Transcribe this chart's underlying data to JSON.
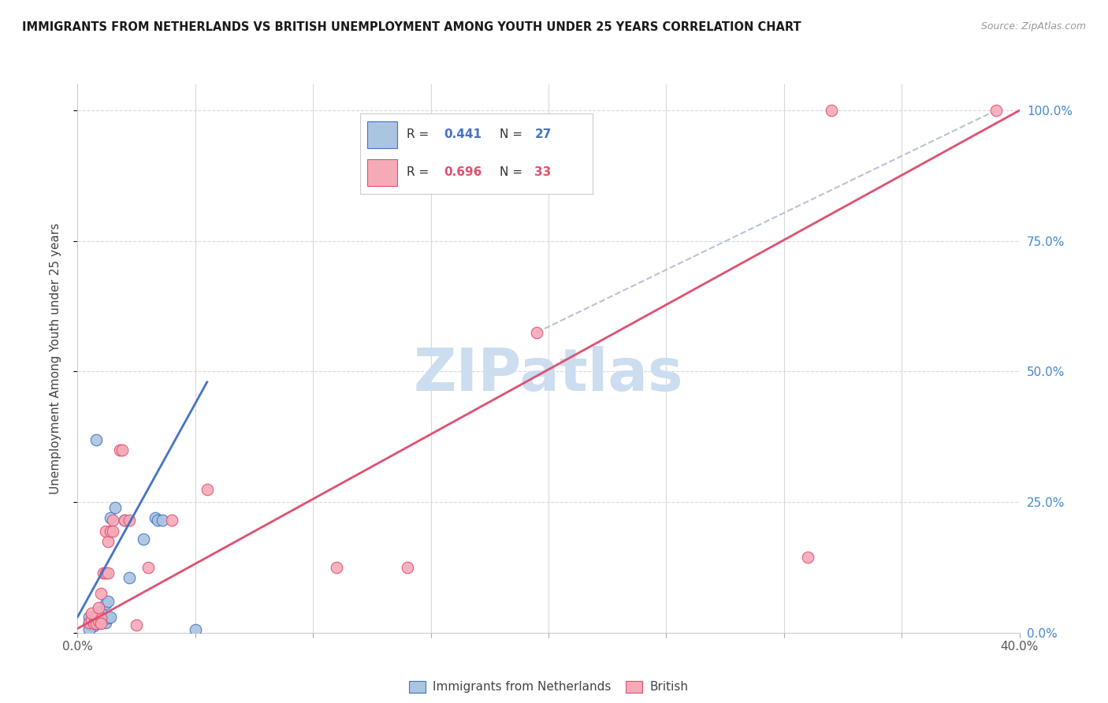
{
  "title": "IMMIGRANTS FROM NETHERLANDS VS BRITISH UNEMPLOYMENT AMONG YOUTH UNDER 25 YEARS CORRELATION CHART",
  "source": "Source: ZipAtlas.com",
  "ylabel": "Unemployment Among Youth under 25 years",
  "right_yticks": [
    "0.0%",
    "25.0%",
    "50.0%",
    "75.0%",
    "100.0%"
  ],
  "legend_blue_r_val": "0.441",
  "legend_blue_n_val": "27",
  "legend_pink_r_val": "0.696",
  "legend_pink_n_val": "33",
  "blue_color": "#aac4e2",
  "pink_color": "#f5aab8",
  "blue_line_color": "#4472C4",
  "pink_line_color": "#E05070",
  "dashed_line_color": "#b8c4d4",
  "blue_scatter": [
    [
      0.005,
      0.02
    ],
    [
      0.007,
      0.025
    ],
    [
      0.008,
      0.035
    ],
    [
      0.01,
      0.04
    ],
    [
      0.01,
      0.02
    ],
    [
      0.01,
      0.025
    ],
    [
      0.012,
      0.02
    ],
    [
      0.012,
      0.055
    ],
    [
      0.013,
      0.028
    ],
    [
      0.013,
      0.06
    ],
    [
      0.014,
      0.03
    ],
    [
      0.005,
      0.03
    ],
    [
      0.005,
      0.017
    ],
    [
      0.006,
      0.015
    ],
    [
      0.007,
      0.013
    ],
    [
      0.008,
      0.018
    ],
    [
      0.014,
      0.22
    ],
    [
      0.016,
      0.24
    ],
    [
      0.02,
      0.215
    ],
    [
      0.022,
      0.105
    ],
    [
      0.028,
      0.18
    ],
    [
      0.033,
      0.22
    ],
    [
      0.034,
      0.215
    ],
    [
      0.036,
      0.215
    ],
    [
      0.05,
      0.005
    ],
    [
      0.008,
      0.37
    ],
    [
      0.005,
      0.005
    ]
  ],
  "pink_scatter": [
    [
      0.005,
      0.02
    ],
    [
      0.006,
      0.025
    ],
    [
      0.007,
      0.018
    ],
    [
      0.008,
      0.028
    ],
    [
      0.008,
      0.018
    ],
    [
      0.009,
      0.022
    ],
    [
      0.01,
      0.028
    ],
    [
      0.01,
      0.018
    ],
    [
      0.006,
      0.038
    ],
    [
      0.009,
      0.048
    ],
    [
      0.01,
      0.075
    ],
    [
      0.011,
      0.115
    ],
    [
      0.012,
      0.115
    ],
    [
      0.013,
      0.115
    ],
    [
      0.012,
      0.195
    ],
    [
      0.013,
      0.175
    ],
    [
      0.014,
      0.195
    ],
    [
      0.015,
      0.215
    ],
    [
      0.015,
      0.195
    ],
    [
      0.018,
      0.35
    ],
    [
      0.019,
      0.35
    ],
    [
      0.02,
      0.215
    ],
    [
      0.022,
      0.215
    ],
    [
      0.025,
      0.015
    ],
    [
      0.03,
      0.125
    ],
    [
      0.04,
      0.215
    ],
    [
      0.055,
      0.275
    ],
    [
      0.11,
      0.125
    ],
    [
      0.14,
      0.125
    ],
    [
      0.195,
      0.575
    ],
    [
      0.32,
      1.0
    ],
    [
      0.31,
      0.145
    ],
    [
      0.39,
      1.0
    ]
  ],
  "blue_line_x": [
    0.0,
    0.055
  ],
  "blue_line_y": [
    0.03,
    0.48
  ],
  "pink_line_x": [
    0.0,
    0.4
  ],
  "pink_line_y": [
    0.008,
    1.0
  ],
  "dashed_line_x": [
    0.195,
    0.39
  ],
  "dashed_line_y": [
    0.575,
    1.0
  ],
  "xlim": [
    0.0,
    0.4
  ],
  "ylim": [
    0.0,
    1.05
  ],
  "watermark": "ZIPatlas",
  "watermark_color": "#ccddf0",
  "figsize": [
    14.06,
    8.92
  ],
  "dpi": 100
}
